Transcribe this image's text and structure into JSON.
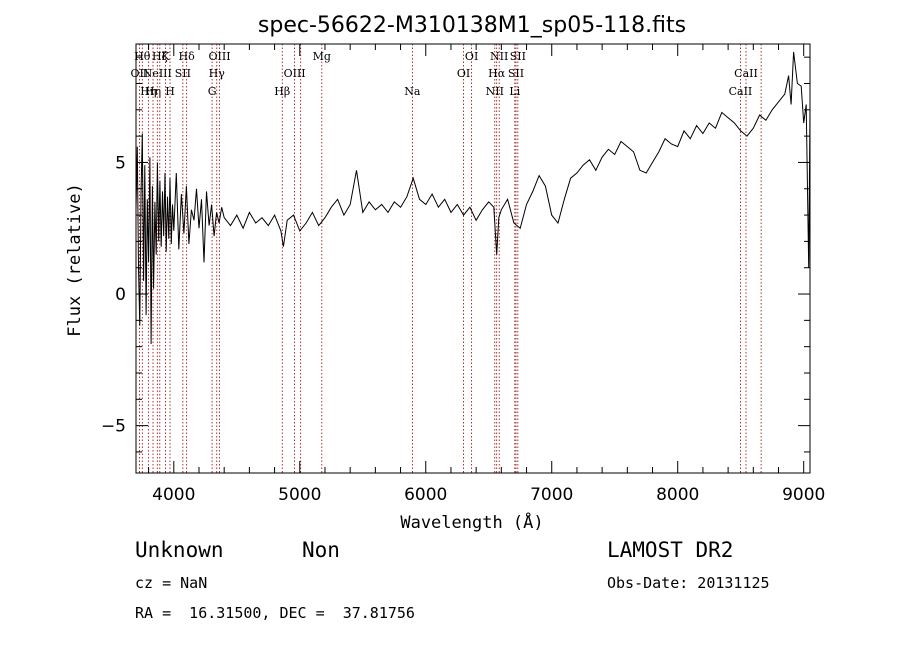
{
  "chart_data": {
    "type": "line",
    "title": "spec-56622-M310138M1_sp05-118.fits",
    "xlabel": "Wavelength (Å)",
    "ylabel": "Flux (relative)",
    "xlim": [
      3700,
      9050
    ],
    "ylim": [
      -6.8,
      9.5
    ],
    "xticks": [
      4000,
      5000,
      6000,
      7000,
      8000,
      9000
    ],
    "yticks": [
      -5,
      0,
      5
    ],
    "grid": false,
    "line_color": "#000000",
    "marker_color": "#990000",
    "series": [
      {
        "x": [
          3700,
          3710,
          3720,
          3730,
          3740,
          3750,
          3760,
          3770,
          3780,
          3790,
          3800,
          3810,
          3820,
          3830,
          3840,
          3850,
          3860,
          3870,
          3880,
          3890,
          3900,
          3910,
          3920,
          3930,
          3940,
          3950,
          3960,
          3970,
          3980,
          3990,
          4000,
          4020,
          4040,
          4060,
          4080,
          4100,
          4120,
          4140,
          4160,
          4180,
          4200,
          4220,
          4240,
          4260,
          4280,
          4300,
          4320,
          4340,
          4360,
          4380,
          4400,
          4450,
          4500,
          4550,
          4600,
          4650,
          4700,
          4750,
          4800,
          4850,
          4870,
          4900,
          4950,
          5000,
          5050,
          5100,
          5150,
          5200,
          5250,
          5300,
          5350,
          5400,
          5450,
          5500,
          5550,
          5600,
          5650,
          5700,
          5750,
          5800,
          5850,
          5900,
          5950,
          6000,
          6050,
          6100,
          6150,
          6200,
          6250,
          6300,
          6350,
          6400,
          6450,
          6500,
          6540,
          6563,
          6580,
          6600,
          6650,
          6700,
          6750,
          6800,
          6850,
          6900,
          6950,
          7000,
          7050,
          7100,
          7150,
          7200,
          7250,
          7300,
          7350,
          7400,
          7450,
          7500,
          7550,
          7600,
          7650,
          7700,
          7750,
          7800,
          7850,
          7900,
          7950,
          8000,
          8050,
          8100,
          8150,
          8200,
          8250,
          8300,
          8350,
          8400,
          8450,
          8500,
          8550,
          8600,
          8650,
          8700,
          8750,
          8800,
          8850,
          8880,
          8900,
          8920,
          8950,
          8980,
          9000,
          9020,
          9040,
          9050
        ],
        "y": [
          3.2,
          5.6,
          1.0,
          -1.2,
          3.8,
          6.1,
          0.5,
          4.9,
          -0.8,
          3.6,
          1.2,
          5.2,
          -1.9,
          4.1,
          0.2,
          3.5,
          1.5,
          5.0,
          2.0,
          4.3,
          1.8,
          3.9,
          2.2,
          4.6,
          1.6,
          3.7,
          2.1,
          4.4,
          1.9,
          3.4,
          2.4,
          4.6,
          1.7,
          3.8,
          2.3,
          4.1,
          1.9,
          3.2,
          2.8,
          4.0,
          2.5,
          3.6,
          1.2,
          3.9,
          2.6,
          3.4,
          2.2,
          3.1,
          2.7,
          3.3,
          2.9,
          2.6,
          3.0,
          2.5,
          3.1,
          2.7,
          2.9,
          2.6,
          3.0,
          2.4,
          1.8,
          2.8,
          3.0,
          2.4,
          2.7,
          3.1,
          2.6,
          2.9,
          3.3,
          3.6,
          3.0,
          3.4,
          4.7,
          3.1,
          3.5,
          3.2,
          3.4,
          3.1,
          3.5,
          3.3,
          3.7,
          4.4,
          3.6,
          3.4,
          3.8,
          3.3,
          3.6,
          3.1,
          3.4,
          3.0,
          3.3,
          2.8,
          3.2,
          3.5,
          3.3,
          1.5,
          2.9,
          3.2,
          3.6,
          2.7,
          2.5,
          3.4,
          3.9,
          4.5,
          4.1,
          3.0,
          2.7,
          3.6,
          4.4,
          4.6,
          4.9,
          5.1,
          4.7,
          5.2,
          5.5,
          5.3,
          5.8,
          5.6,
          5.4,
          4.7,
          4.6,
          5.0,
          5.4,
          5.9,
          5.7,
          5.6,
          6.2,
          5.9,
          6.4,
          6.1,
          6.5,
          6.3,
          6.9,
          6.7,
          6.5,
          6.2,
          6.0,
          6.3,
          6.8,
          6.6,
          7.0,
          7.3,
          7.6,
          8.3,
          7.2,
          9.2,
          8.0,
          7.9,
          6.5,
          7.2,
          1.0,
          7.0
        ]
      }
    ],
    "line_markers": [
      {
        "x": 3727,
        "label": "OII",
        "row": 2
      },
      {
        "x": 3750,
        "label": "Hθ",
        "row": 1
      },
      {
        "x": 3798,
        "label": "Hη",
        "row": 3
      },
      {
        "x": 3835,
        "label": "Hη",
        "row": 3
      },
      {
        "x": 3869,
        "label": "NeIII",
        "row": 2
      },
      {
        "x": 3889,
        "label": "Hζ",
        "row": 1
      },
      {
        "x": 3934,
        "label": "K",
        "row": 1
      },
      {
        "x": 3970,
        "label": "H",
        "row": 3
      },
      {
        "x": 4072,
        "label": "SII",
        "row": 2
      },
      {
        "x": 4102,
        "label": "Hδ",
        "row": 1
      },
      {
        "x": 4304,
        "label": "G",
        "row": 3
      },
      {
        "x": 4341,
        "label": "Hγ",
        "row": 2
      },
      {
        "x": 4363,
        "label": "OIII",
        "row": 1
      },
      {
        "x": 4861,
        "label": "Hβ",
        "row": 3
      },
      {
        "x": 4959,
        "label": "OIII",
        "row": 2
      },
      {
        "x": 5007,
        "label": "",
        "row": 0
      },
      {
        "x": 5175,
        "label": "Mg",
        "row": 1
      },
      {
        "x": 5894,
        "label": "Na",
        "row": 3
      },
      {
        "x": 6300,
        "label": "OI",
        "row": 2
      },
      {
        "x": 6364,
        "label": "OI",
        "row": 1
      },
      {
        "x": 6548,
        "label": "NII",
        "row": 3
      },
      {
        "x": 6563,
        "label": "Hα",
        "row": 2
      },
      {
        "x": 6583,
        "label": "NII",
        "row": 1
      },
      {
        "x": 6707,
        "label": "Li",
        "row": 3
      },
      {
        "x": 6716,
        "label": "SII",
        "row": 2
      },
      {
        "x": 6731,
        "label": "SII",
        "row": 1
      },
      {
        "x": 8498,
        "label": "CaII",
        "row": 3
      },
      {
        "x": 8542,
        "label": "CaII",
        "row": 2
      },
      {
        "x": 8662,
        "label": "",
        "row": 0
      }
    ]
  },
  "info": {
    "class_label": "Unknown",
    "subclass_label": "Non",
    "survey_label": "LAMOST DR2",
    "cz_label": "cz = NaN",
    "obs_date_label": "Obs-Date: 20131125",
    "radec_label": "RA =  16.31500, DEC =  37.81756"
  }
}
